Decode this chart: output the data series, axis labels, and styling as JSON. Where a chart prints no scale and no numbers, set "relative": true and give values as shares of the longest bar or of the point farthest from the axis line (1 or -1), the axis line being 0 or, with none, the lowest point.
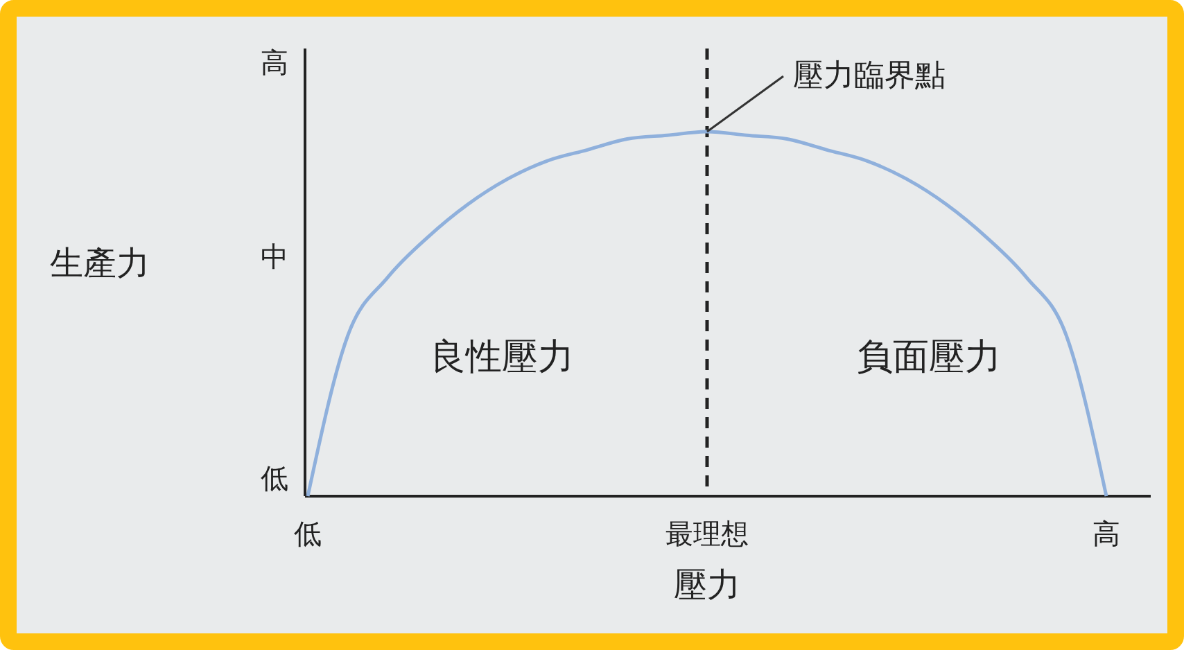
{
  "chart_data": {
    "type": "line",
    "xlabel": "壓力",
    "ylabel": "生產力",
    "relative": true,
    "categories": [
      "低",
      null,
      null,
      null,
      null,
      null,
      null,
      null,
      null,
      null,
      "最理想",
      null,
      null,
      null,
      null,
      null,
      null,
      null,
      null,
      null,
      "高"
    ],
    "grid": false,
    "marker": "none",
    "line_style": "solid",
    "series": [
      {
        "color": "#8fb0dc",
        "values": [
          0,
          0.44,
          0.6,
          0.71,
          0.8,
          0.87,
          0.92,
          0.95,
          0.98,
          0.99,
          1,
          0.99,
          0.98,
          0.95,
          0.92,
          0.87,
          0.8,
          0.71,
          0.6,
          0.44,
          0
        ]
      }
    ],
    "ref_lines": [
      {
        "axis": "x",
        "value": "最理想",
        "label": null,
        "color": "#222222",
        "line_style": "dashed"
      }
    ],
    "annotations": [
      {
        "text": "壓力臨界點",
        "x": "最理想",
        "y": 1
      },
      "良性壓力",
      "負面壓力",
      "低",
      "中",
      "高"
    ]
  }
}
